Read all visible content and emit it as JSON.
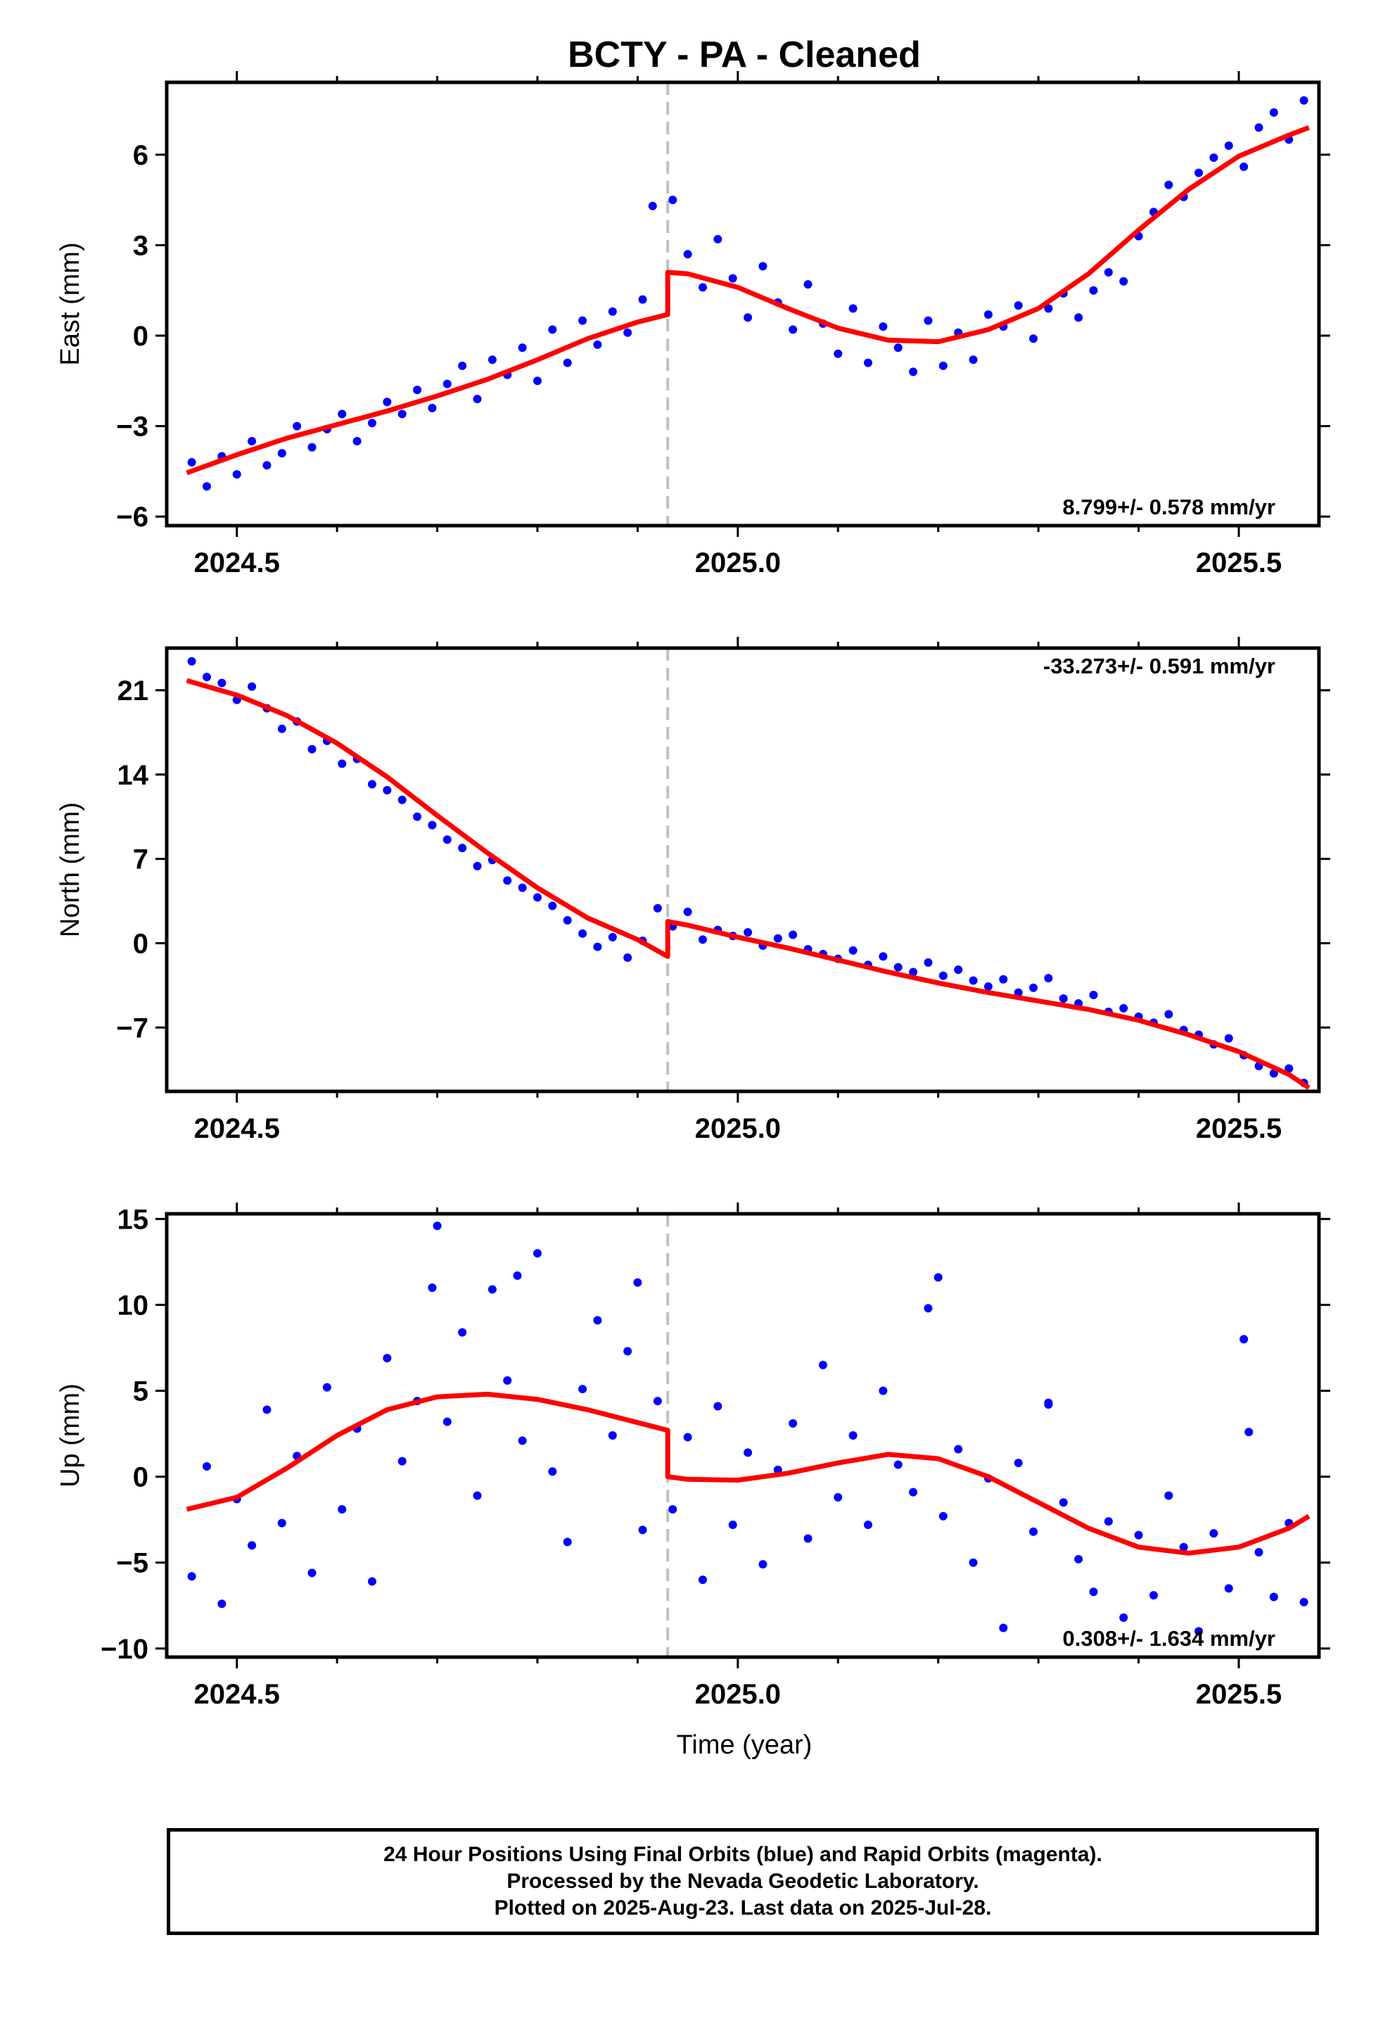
{
  "title": "BCTY  - PA - Cleaned",
  "xlabel": "Time (year)",
  "footnote": [
    "24 Hour Positions Using Final Orbits (blue) and Rapid Orbits (magenta).",
    "Processed by the Nevada Geodetic Laboratory.",
    "Plotted on 2025-Aug-23. Last data on 2025-Jul-28."
  ],
  "colors": {
    "points": "#0000ff",
    "model": "#ff0000",
    "offset_line": "#c0c0c0"
  },
  "chart_data": [
    {
      "type": "scatter",
      "ylabel": "East (mm)",
      "rate_label": "8.799+/- 0.578 mm/yr",
      "rate_position": "bottom-right",
      "xlim": [
        2024.43,
        2025.58
      ],
      "ylim": [
        -6.3,
        8.4
      ],
      "xticks": [
        2024.5,
        2025.0,
        2025.5
      ],
      "xtick_labels": [
        "2024.5",
        "2025.0",
        "2025.5"
      ],
      "yticks": [
        -6,
        -3,
        0,
        3,
        6
      ],
      "ytick_labels": [
        "−6",
        "−3",
        "0",
        "3",
        "6"
      ],
      "offset_epoch": 2024.93,
      "series": [
        {
          "style": "points",
          "x": [
            2024.455,
            2024.47,
            2024.485,
            2024.5,
            2024.515,
            2024.53,
            2024.545,
            2024.56,
            2024.575,
            2024.59,
            2024.605,
            2024.62,
            2024.635,
            2024.65,
            2024.665,
            2024.68,
            2024.695,
            2024.71,
            2024.725,
            2024.74,
            2024.755,
            2024.77,
            2024.785,
            2024.8,
            2024.815,
            2024.83,
            2024.845,
            2024.86,
            2024.875,
            2024.89,
            2024.905,
            2024.915,
            2024.935,
            2024.95,
            2024.965,
            2024.98,
            2024.995,
            2025.01,
            2025.025,
            2025.04,
            2025.055,
            2025.07,
            2025.085,
            2025.1,
            2025.115,
            2025.13,
            2025.145,
            2025.16,
            2025.175,
            2025.19,
            2025.205,
            2025.22,
            2025.235,
            2025.25,
            2025.265,
            2025.28,
            2025.295,
            2025.31,
            2025.325,
            2025.34,
            2025.355,
            2025.37,
            2025.385,
            2025.4,
            2025.415,
            2025.43,
            2025.445,
            2025.46,
            2025.475,
            2025.49,
            2025.505,
            2025.52,
            2025.535,
            2025.55,
            2025.565
          ],
          "y": [
            -4.2,
            -5.0,
            -4.0,
            -4.6,
            -3.5,
            -4.3,
            -3.9,
            -3.0,
            -3.7,
            -3.1,
            -2.6,
            -3.5,
            -2.9,
            -2.2,
            -2.6,
            -1.8,
            -2.4,
            -1.6,
            -1.0,
            -2.1,
            -0.8,
            -1.3,
            -0.4,
            -1.5,
            0.2,
            -0.9,
            0.5,
            -0.3,
            0.8,
            0.1,
            1.2,
            4.3,
            4.5,
            2.7,
            1.6,
            3.2,
            1.9,
            0.6,
            2.3,
            1.1,
            0.2,
            1.7,
            0.4,
            -0.6,
            0.9,
            -0.9,
            0.3,
            -0.4,
            -1.2,
            0.5,
            -1.0,
            0.1,
            -0.8,
            0.7,
            0.3,
            1.0,
            -0.1,
            0.9,
            1.4,
            0.6,
            1.5,
            2.1,
            1.8,
            3.3,
            4.1,
            5.0,
            4.6,
            5.4,
            5.9,
            6.3,
            5.6,
            6.9,
            7.4,
            6.5,
            7.8
          ]
        },
        {
          "style": "model",
          "x": [
            2024.45,
            2024.5,
            2024.55,
            2024.6,
            2024.65,
            2024.7,
            2024.75,
            2024.8,
            2024.85,
            2024.9,
            2024.93,
            2024.93,
            2024.95,
            2025.0,
            2025.05,
            2025.1,
            2025.15,
            2025.2,
            2025.25,
            2025.3,
            2025.35,
            2025.4,
            2025.45,
            2025.5,
            2025.55,
            2025.57
          ],
          "y": [
            -4.55,
            -3.95,
            -3.4,
            -2.95,
            -2.5,
            -2.0,
            -1.45,
            -0.8,
            -0.1,
            0.45,
            0.7,
            2.1,
            2.05,
            1.6,
            0.9,
            0.25,
            -0.15,
            -0.2,
            0.2,
            0.9,
            2.05,
            3.5,
            4.85,
            5.95,
            6.65,
            6.9
          ]
        }
      ]
    },
    {
      "type": "scatter",
      "ylabel": "North (mm)",
      "rate_label": "-33.273+/- 0.591 mm/yr",
      "rate_position": "top-right",
      "xlim": [
        2024.43,
        2025.58
      ],
      "ylim": [
        -12.3,
        24.5
      ],
      "xticks": [
        2024.5,
        2025.0,
        2025.5
      ],
      "xtick_labels": [
        "2024.5",
        "2025.0",
        "2025.5"
      ],
      "yticks": [
        -7,
        0,
        7,
        14,
        21
      ],
      "ytick_labels": [
        "−7",
        "0",
        "7",
        "14",
        "21"
      ],
      "offset_epoch": 2024.93,
      "series": [
        {
          "style": "points",
          "x": [
            2024.455,
            2024.47,
            2024.485,
            2024.5,
            2024.515,
            2024.53,
            2024.545,
            2024.56,
            2024.575,
            2024.59,
            2024.605,
            2024.62,
            2024.635,
            2024.65,
            2024.665,
            2024.68,
            2024.695,
            2024.71,
            2024.725,
            2024.74,
            2024.755,
            2024.77,
            2024.785,
            2024.8,
            2024.815,
            2024.83,
            2024.845,
            2024.86,
            2024.875,
            2024.89,
            2024.905,
            2024.92,
            2024.935,
            2024.95,
            2024.965,
            2024.98,
            2024.995,
            2025.01,
            2025.025,
            2025.04,
            2025.055,
            2025.07,
            2025.085,
            2025.1,
            2025.115,
            2025.13,
            2025.145,
            2025.16,
            2025.175,
            2025.19,
            2025.205,
            2025.22,
            2025.235,
            2025.25,
            2025.265,
            2025.28,
            2025.295,
            2025.31,
            2025.325,
            2025.34,
            2025.355,
            2025.37,
            2025.385,
            2025.4,
            2025.415,
            2025.43,
            2025.445,
            2025.46,
            2025.475,
            2025.49,
            2025.505,
            2025.52,
            2025.535,
            2025.55,
            2025.565
          ],
          "y": [
            23.4,
            22.1,
            21.6,
            20.2,
            21.3,
            19.5,
            17.8,
            18.4,
            16.1,
            16.8,
            14.9,
            15.3,
            13.2,
            12.7,
            11.9,
            10.5,
            9.8,
            8.6,
            7.9,
            6.4,
            6.9,
            5.2,
            4.6,
            3.8,
            3.1,
            1.9,
            0.8,
            -0.3,
            0.5,
            -1.2,
            0.2,
            2.9,
            1.4,
            2.6,
            0.3,
            1.1,
            0.6,
            0.9,
            -0.2,
            0.4,
            0.7,
            -0.5,
            -0.9,
            -1.3,
            -0.6,
            -1.8,
            -1.1,
            -2.0,
            -2.4,
            -1.6,
            -2.7,
            -2.2,
            -3.1,
            -3.6,
            -3.0,
            -4.1,
            -3.7,
            -2.9,
            -4.6,
            -5.0,
            -4.3,
            -5.7,
            -5.4,
            -6.1,
            -6.6,
            -5.9,
            -7.2,
            -7.6,
            -8.4,
            -7.9,
            -9.3,
            -10.2,
            -10.8,
            -10.4,
            -11.6
          ]
        },
        {
          "style": "model",
          "x": [
            2024.45,
            2024.5,
            2024.55,
            2024.6,
            2024.65,
            2024.7,
            2024.75,
            2024.8,
            2024.85,
            2024.9,
            2024.93,
            2024.93,
            2024.95,
            2025.0,
            2025.05,
            2025.1,
            2025.15,
            2025.2,
            2025.25,
            2025.3,
            2025.35,
            2025.4,
            2025.45,
            2025.5,
            2025.55,
            2025.57
          ],
          "y": [
            21.8,
            20.6,
            18.9,
            16.6,
            13.8,
            10.6,
            7.5,
            4.6,
            2.1,
            0.3,
            -1.1,
            1.8,
            1.5,
            0.5,
            -0.4,
            -1.4,
            -2.4,
            -3.3,
            -4.1,
            -4.8,
            -5.5,
            -6.4,
            -7.6,
            -9.0,
            -10.9,
            -12.0
          ]
        }
      ]
    },
    {
      "type": "scatter",
      "ylabel": "Up (mm)",
      "rate_label": "0.308+/- 1.634 mm/yr",
      "rate_position": "bottom-right",
      "xlim": [
        2024.43,
        2025.58
      ],
      "ylim": [
        -10.5,
        15.3
      ],
      "xticks": [
        2024.5,
        2025.0,
        2025.5
      ],
      "xtick_labels": [
        "2024.5",
        "2025.0",
        "2025.5"
      ],
      "yticks": [
        -10,
        -5,
        0,
        5,
        10,
        15
      ],
      "ytick_labels": [
        "−10",
        "−5",
        "0",
        "5",
        "10",
        "15"
      ],
      "offset_epoch": 2024.93,
      "series": [
        {
          "style": "points",
          "x": [
            2024.455,
            2024.47,
            2024.485,
            2024.5,
            2024.515,
            2024.53,
            2024.545,
            2024.56,
            2024.575,
            2024.59,
            2024.605,
            2024.62,
            2024.635,
            2024.65,
            2024.665,
            2024.68,
            2024.695,
            2024.71,
            2024.725,
            2024.74,
            2024.755,
            2024.77,
            2024.785,
            2024.8,
            2024.815,
            2024.83,
            2024.845,
            2024.86,
            2024.875,
            2024.89,
            2024.905,
            2024.92,
            2024.935,
            2024.95,
            2024.965,
            2024.98,
            2024.995,
            2025.01,
            2025.025,
            2025.04,
            2025.055,
            2025.07,
            2025.085,
            2025.1,
            2025.115,
            2025.13,
            2025.145,
            2025.16,
            2025.175,
            2025.19,
            2025.205,
            2025.22,
            2025.235,
            2025.25,
            2025.265,
            2025.28,
            2025.295,
            2025.31,
            2025.325,
            2025.34,
            2025.355,
            2025.37,
            2025.385,
            2025.4,
            2025.415,
            2025.43,
            2025.445,
            2025.46,
            2025.475,
            2025.49,
            2025.505,
            2025.52,
            2025.535,
            2025.55,
            2025.565,
            2024.7,
            2024.78,
            2024.9,
            2025.2,
            2025.31,
            2025.51
          ],
          "y": [
            -5.8,
            0.6,
            -7.4,
            -1.3,
            -4.0,
            3.9,
            -2.7,
            1.2,
            -5.6,
            5.2,
            -1.9,
            2.8,
            -6.1,
            6.9,
            0.9,
            4.4,
            11.0,
            3.2,
            8.4,
            -1.1,
            10.9,
            5.6,
            2.1,
            13.0,
            0.3,
            -3.8,
            5.1,
            9.1,
            2.4,
            7.3,
            -3.1,
            4.4,
            -1.9,
            2.3,
            -6.0,
            4.1,
            -2.8,
            1.4,
            -5.1,
            0.4,
            3.1,
            -3.6,
            6.5,
            -1.2,
            2.4,
            -2.8,
            5.0,
            0.7,
            -0.9,
            9.8,
            -2.3,
            1.6,
            -5.0,
            -0.1,
            -8.8,
            0.8,
            -3.2,
            4.2,
            -1.5,
            -4.8,
            -6.7,
            -2.6,
            -8.2,
            -3.4,
            -6.9,
            -1.1,
            -4.1,
            -9.0,
            -3.3,
            -6.5,
            8.0,
            -4.4,
            -7.0,
            -2.7,
            -7.3,
            14.6,
            11.7,
            11.3,
            11.6,
            4.3,
            2.6
          ]
        },
        {
          "style": "model",
          "x": [
            2024.45,
            2024.5,
            2024.55,
            2024.6,
            2024.65,
            2024.7,
            2024.75,
            2024.8,
            2024.85,
            2024.9,
            2024.93,
            2024.93,
            2024.95,
            2025.0,
            2025.05,
            2025.1,
            2025.15,
            2025.2,
            2025.25,
            2025.3,
            2025.35,
            2025.4,
            2025.45,
            2025.5,
            2025.55,
            2025.57
          ],
          "y": [
            -1.9,
            -1.2,
            0.5,
            2.4,
            3.9,
            4.65,
            4.8,
            4.5,
            3.9,
            3.15,
            2.7,
            0.0,
            -0.15,
            -0.2,
            0.2,
            0.8,
            1.3,
            1.05,
            0.0,
            -1.5,
            -3.0,
            -4.1,
            -4.45,
            -4.1,
            -3.0,
            -2.3
          ]
        }
      ]
    }
  ]
}
